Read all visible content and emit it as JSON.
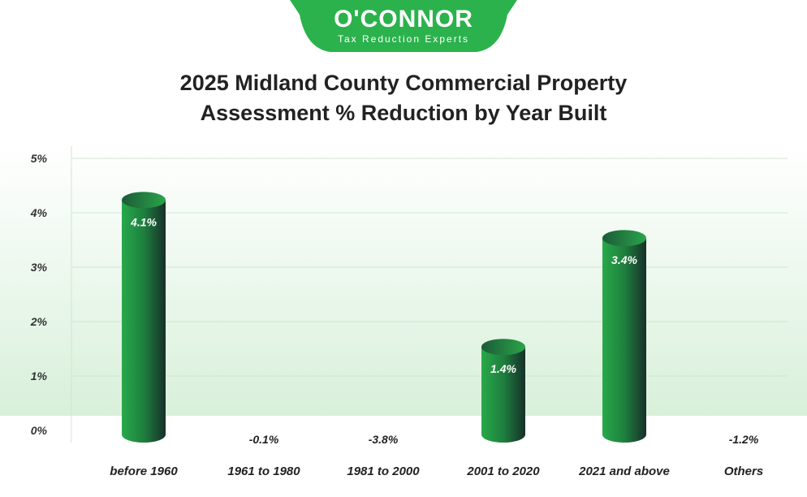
{
  "logo": {
    "name": "O'CONNOR",
    "tagline": "Tax Reduction Experts",
    "color": "#2bb24c"
  },
  "title_line1": "2025 Midland County Commercial Property",
  "title_line2": "Assessment % Reduction by Year Built",
  "chart_data": {
    "type": "bar",
    "title": "2025 Midland County Commercial Property Assessment % Reduction by Year Built",
    "categories": [
      "before 1960",
      "1961 to 1980",
      "1981 to 2000",
      "2001 to 2020",
      "2021 and above",
      "Others"
    ],
    "values": [
      4.1,
      -0.1,
      -3.8,
      1.4,
      3.4,
      -1.2
    ],
    "value_labels": [
      "4.1%",
      "-0.1%",
      "-3.8%",
      "1.4%",
      "3.4%",
      "-1.2%"
    ],
    "yticks": [
      "0%",
      "1%",
      "2%",
      "3%",
      "4%",
      "5%"
    ],
    "ylim": [
      0,
      5
    ],
    "grid": true,
    "bar_color": "#1f9a45"
  }
}
